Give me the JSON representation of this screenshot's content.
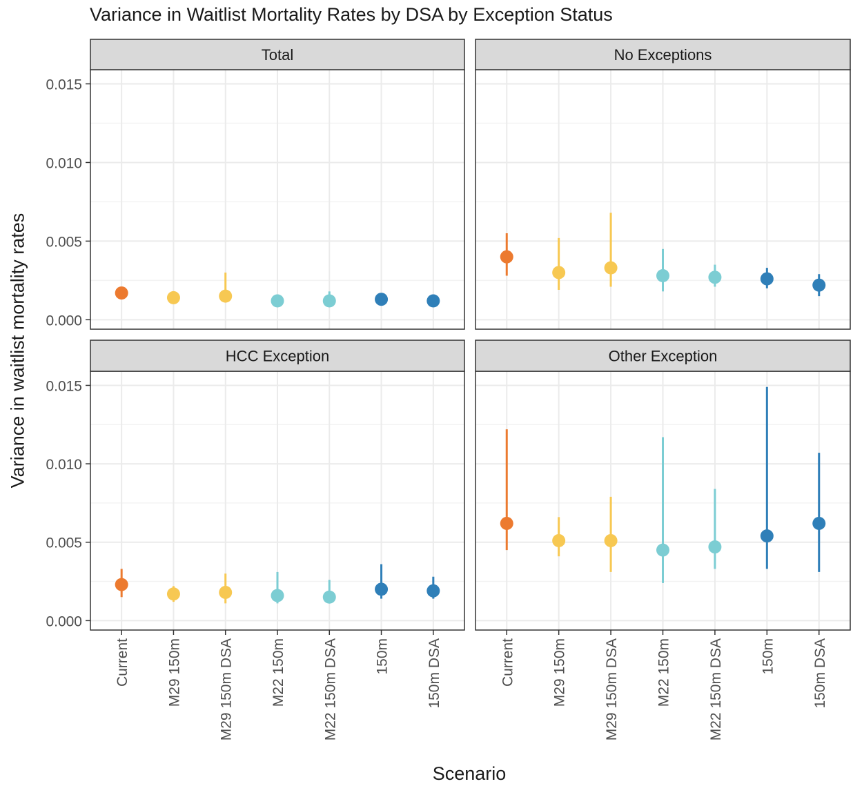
{
  "chart_data": {
    "type": "scatter",
    "title": "Variance in Waitlist Mortality Rates by DSA by Exception Status",
    "xlabel": "Scenario",
    "ylabel": "Variance in waitlist mortality rates",
    "categories": [
      "Current",
      "M29 150m",
      "M29 150m DSA",
      "M22 150m",
      "M22 150m DSA",
      "150m",
      "150m DSA"
    ],
    "category_colors": [
      "#ec7a2f",
      "#f7c852",
      "#f7c852",
      "#7ccdd3",
      "#7ccdd3",
      "#2f7fb8",
      "#2f7fb8"
    ],
    "ylim": [
      -0.0006,
      0.0159
    ],
    "yticks": [
      0.0,
      0.005,
      0.01,
      0.015
    ],
    "ytick_labels": [
      "0.000",
      "0.005",
      "0.010",
      "0.015"
    ],
    "grid": true,
    "panels": [
      {
        "name": "Total",
        "values": [
          0.0017,
          0.0014,
          0.0015,
          0.0012,
          0.0012,
          0.0013,
          0.0012
        ],
        "lower": [
          0.0015,
          0.0012,
          0.0012,
          0.001,
          0.001,
          0.0011,
          0.001
        ],
        "upper": [
          0.0019,
          0.0017,
          0.003,
          0.0015,
          0.0018,
          0.0016,
          0.0015
        ]
      },
      {
        "name": "No Exceptions",
        "values": [
          0.004,
          0.003,
          0.0033,
          0.0028,
          0.0027,
          0.0026,
          0.0022
        ],
        "lower": [
          0.0028,
          0.0019,
          0.0021,
          0.0018,
          0.0021,
          0.002,
          0.0015
        ],
        "upper": [
          0.0055,
          0.0052,
          0.0068,
          0.0045,
          0.0035,
          0.0033,
          0.0029
        ]
      },
      {
        "name": "HCC Exception",
        "values": [
          0.0023,
          0.0017,
          0.0018,
          0.0016,
          0.0015,
          0.002,
          0.0019
        ],
        "lower": [
          0.0015,
          0.0012,
          0.0011,
          0.0011,
          0.0012,
          0.0014,
          0.0014
        ],
        "upper": [
          0.0033,
          0.0022,
          0.003,
          0.0031,
          0.0026,
          0.0036,
          0.0028
        ]
      },
      {
        "name": "Other Exception",
        "values": [
          0.0062,
          0.0051,
          0.0051,
          0.0045,
          0.0047,
          0.0054,
          0.0062
        ],
        "lower": [
          0.0045,
          0.0041,
          0.0031,
          0.0024,
          0.0033,
          0.0033,
          0.0031
        ],
        "upper": [
          0.0122,
          0.0066,
          0.0079,
          0.0117,
          0.0084,
          0.0149,
          0.0107
        ]
      }
    ]
  }
}
